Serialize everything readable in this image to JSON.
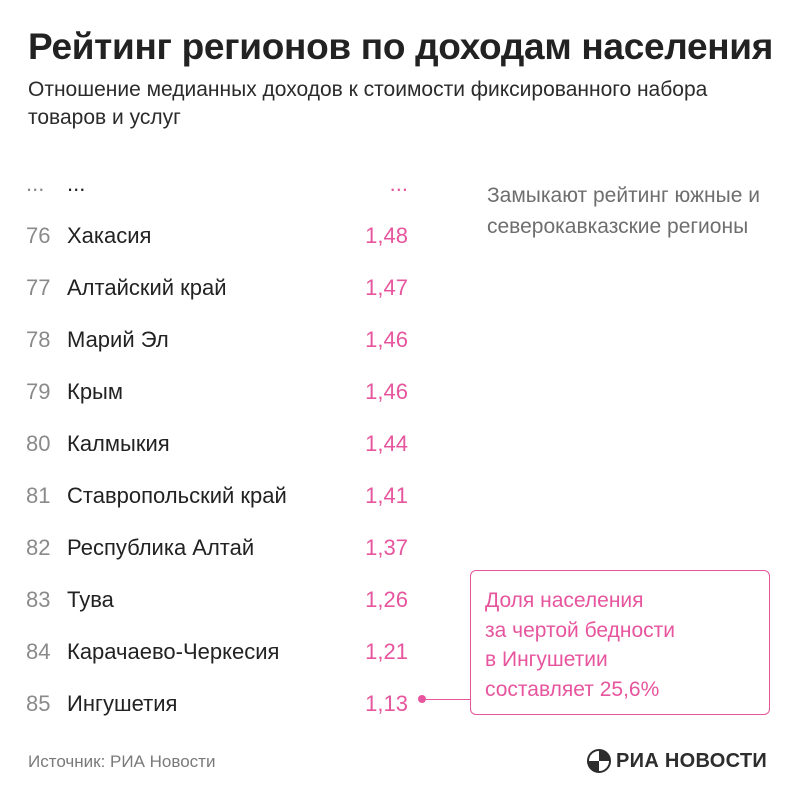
{
  "title": "Рейтинг регионов по доходам населения",
  "subtitle": "Отношение медианных доходов к стоимости фиксированного набора товаров и услуг",
  "note": "Замыкают рейтинг южные и северокавказские регионы",
  "callout": "Доля населения\nза чертой бедности\nв Ингушетии\nсоставляет 25,6%",
  "source": "Источник: РИА Новости",
  "logo": "РИА НОВОСТИ",
  "colors": {
    "accent": "#e6559d",
    "title": "#222222",
    "rank": "#8a8a8a",
    "note": "#6e6e6e"
  },
  "chart_data": {
    "type": "table",
    "title": "Рейтинг регионов по доходам населения",
    "columns": [
      "rank",
      "region",
      "ratio"
    ],
    "rows": [
      {
        "rank": "...",
        "name": "...",
        "value": "..."
      },
      {
        "rank": "76",
        "name": "Хакасия",
        "value": "1,48"
      },
      {
        "rank": "77",
        "name": "Алтайский край",
        "value": "1,47"
      },
      {
        "rank": "78",
        "name": "Марий Эл",
        "value": "1,46"
      },
      {
        "rank": "79",
        "name": "Крым",
        "value": "1,46"
      },
      {
        "rank": "80",
        "name": "Калмыкия",
        "value": "1,44"
      },
      {
        "rank": "81",
        "name": "Ставропольский край",
        "value": "1,41"
      },
      {
        "rank": "82",
        "name": "Республика Алтай",
        "value": "1,37"
      },
      {
        "rank": "83",
        "name": "Тува",
        "value": "1,26"
      },
      {
        "rank": "84",
        "name": "Карачаево-Черкесия",
        "value": "1,21"
      },
      {
        "rank": "85",
        "name": "Ингушетия",
        "value": "1,13"
      }
    ]
  }
}
